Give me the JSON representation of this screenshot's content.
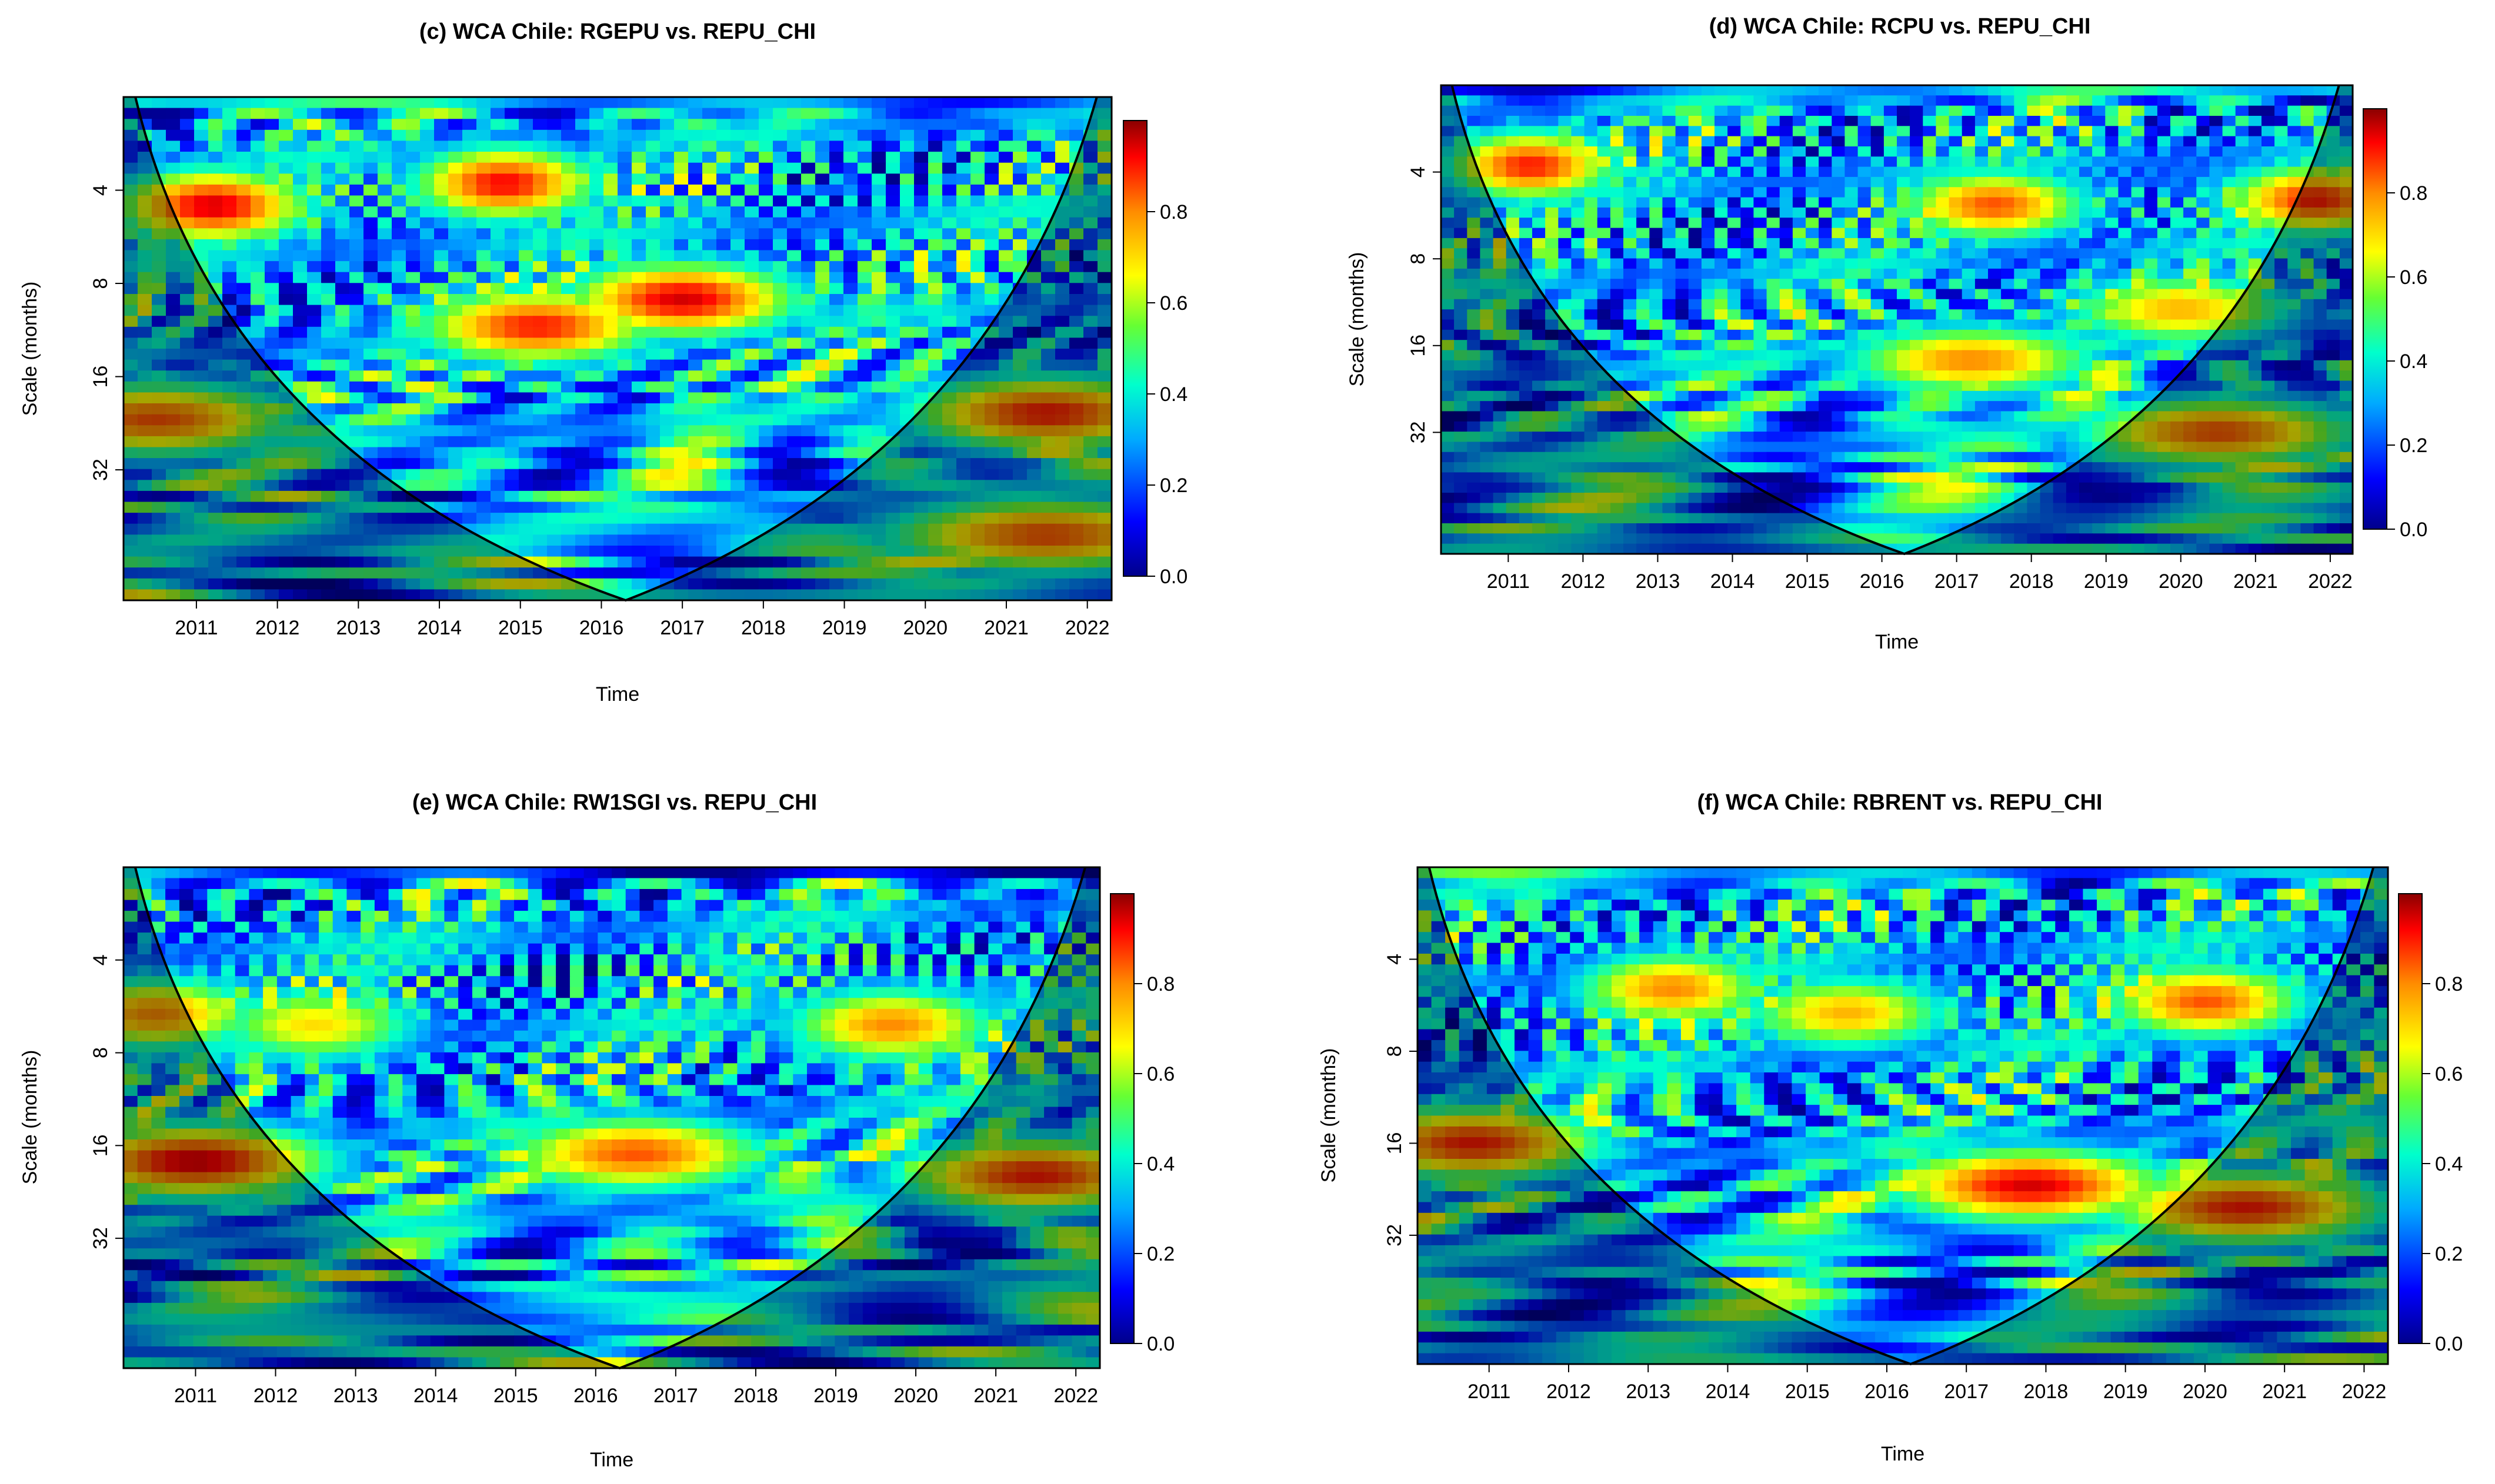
{
  "chart_data": [
    {
      "type": "heatmap",
      "panel": "(c)",
      "title": "(c) WCA Chile: RGEPU vs. REPU_CHI",
      "xlabel": "Time",
      "ylabel": "Scale (months)",
      "x_ticks": [
        "2011",
        "2012",
        "2013",
        "2014",
        "2015",
        "2016",
        "2017",
        "2018",
        "2019",
        "2020",
        "2021",
        "2022"
      ],
      "y_ticks": [
        "4",
        "8",
        "16",
        "32"
      ],
      "colorbar_ticks": [
        "0.0",
        "0.2",
        "0.4",
        "0.6",
        "0.8"
      ],
      "colorbar_range": [
        0,
        1
      ],
      "seed": 3,
      "hotspots": [
        {
          "t": 2017.0,
          "s": 9,
          "v": 0.95
        },
        {
          "t": 2015.2,
          "s": 11,
          "v": 0.9
        },
        {
          "t": 2011.2,
          "s": 4.5,
          "v": 0.95
        },
        {
          "t": 2010.5,
          "s": 22,
          "v": 0.85
        },
        {
          "t": 2014.8,
          "s": 3.8,
          "v": 0.92
        },
        {
          "t": 2021.5,
          "s": 21,
          "v": 0.9
        },
        {
          "t": 2021.5,
          "s": 52,
          "v": 0.85
        }
      ]
    },
    {
      "type": "heatmap",
      "panel": "(d)",
      "title": "(d) WCA Chile: RCPU vs. REPU_CHI",
      "xlabel": "Time",
      "ylabel": "Scale (months)",
      "x_ticks": [
        "2011",
        "2012",
        "2013",
        "2014",
        "2015",
        "2016",
        "2017",
        "2018",
        "2019",
        "2020",
        "2021",
        "2022"
      ],
      "y_ticks": [
        "4",
        "8",
        "16",
        "32"
      ],
      "colorbar_ticks": [
        "0.0",
        "0.2",
        "0.4",
        "0.6",
        "0.8"
      ],
      "colorbar_range": [
        0,
        1
      ],
      "seed": 7,
      "hotspots": [
        {
          "t": 2017.2,
          "s": 18,
          "v": 0.8
        },
        {
          "t": 2020.0,
          "s": 12,
          "v": 0.75
        },
        {
          "t": 2011.3,
          "s": 3.8,
          "v": 0.9
        },
        {
          "t": 2017.5,
          "s": 5.2,
          "v": 0.85
        },
        {
          "t": 2021.8,
          "s": 5,
          "v": 0.9
        },
        {
          "t": 2020.5,
          "s": 32,
          "v": 0.85
        }
      ]
    },
    {
      "type": "heatmap",
      "panel": "(e)",
      "title": "(e) WCA Chile: RW1SGI vs. REPU_CHI",
      "xlabel": "Time",
      "ylabel": "Scale (months)",
      "x_ticks": [
        "2011",
        "2012",
        "2013",
        "2014",
        "2015",
        "2016",
        "2017",
        "2018",
        "2019",
        "2020",
        "2021",
        "2022"
      ],
      "y_ticks": [
        "4",
        "8",
        "16",
        "32"
      ],
      "colorbar_ticks": [
        "0.0",
        "0.2",
        "0.4",
        "0.6",
        "0.8"
      ],
      "colorbar_range": [
        0,
        1
      ],
      "seed": 11,
      "hotspots": [
        {
          "t": 2011.0,
          "s": 18,
          "v": 0.95
        },
        {
          "t": 2016.5,
          "s": 17,
          "v": 0.85
        },
        {
          "t": 2021.5,
          "s": 20,
          "v": 0.9
        },
        {
          "t": 2012.5,
          "s": 6.5,
          "v": 0.7
        },
        {
          "t": 2019.7,
          "s": 6.5,
          "v": 0.8
        },
        {
          "t": 2010.5,
          "s": 6,
          "v": 0.8
        }
      ]
    },
    {
      "type": "heatmap",
      "panel": "(f)",
      "title": "(f) WCA Chile: RBRENT vs. REPU_CHI",
      "xlabel": "Time",
      "ylabel": "Scale (months)",
      "x_ticks": [
        "2011",
        "2012",
        "2013",
        "2014",
        "2015",
        "2016",
        "2017",
        "2018",
        "2019",
        "2020",
        "2021",
        "2022"
      ],
      "y_ticks": [
        "4",
        "8",
        "16",
        "32"
      ],
      "colorbar_ticks": [
        "0.0",
        "0.2",
        "0.4",
        "0.6",
        "0.8"
      ],
      "colorbar_range": [
        0,
        1
      ],
      "seed": 19,
      "hotspots": [
        {
          "t": 2017.8,
          "s": 22,
          "v": 0.95
        },
        {
          "t": 2020.5,
          "s": 26,
          "v": 0.9
        },
        {
          "t": 2010.8,
          "s": 16,
          "v": 0.9
        },
        {
          "t": 2013.3,
          "s": 5,
          "v": 0.8
        },
        {
          "t": 2020.0,
          "s": 5.5,
          "v": 0.85
        },
        {
          "t": 2015.5,
          "s": 6,
          "v": 0.75
        }
      ]
    }
  ]
}
